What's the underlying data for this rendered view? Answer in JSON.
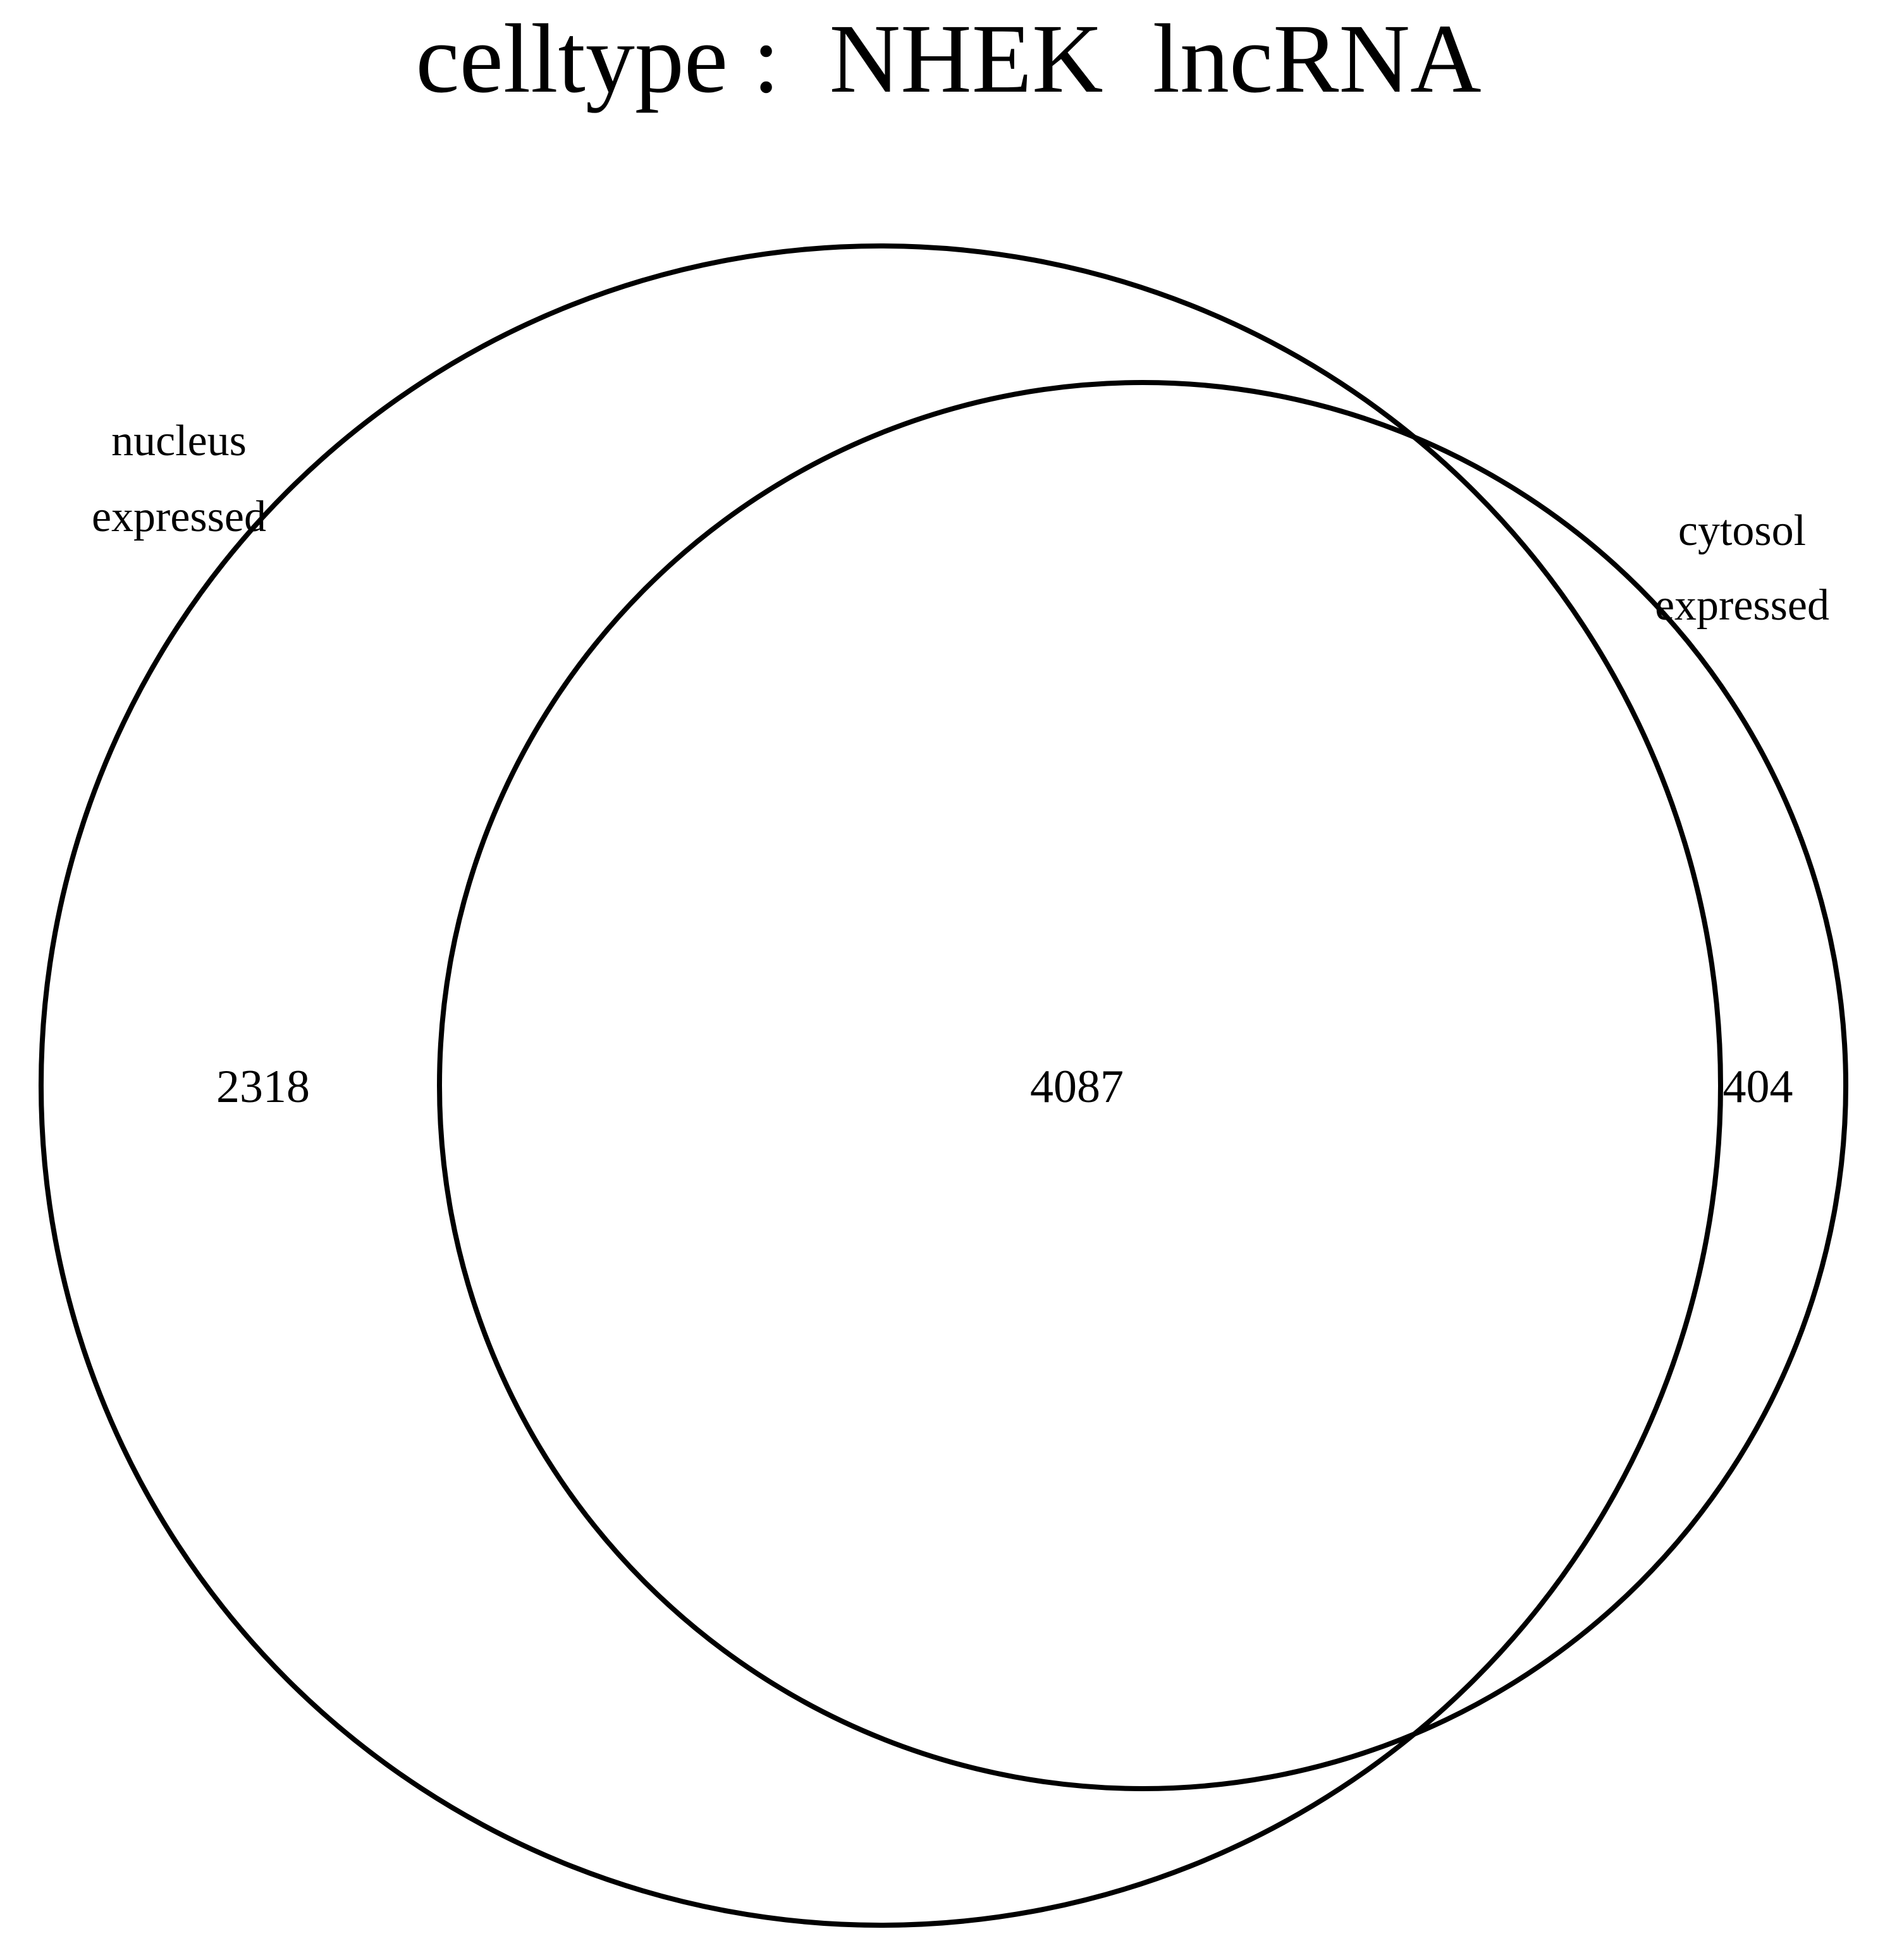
{
  "title": "celltype :  NHEK  lncRNA",
  "sets": [
    {
      "name": "nucleus expressed",
      "label_lines": [
        "nucleus",
        "expressed"
      ]
    },
    {
      "name": "cytosol expressed",
      "label_lines": [
        "cytosol",
        "expressed"
      ]
    }
  ],
  "regions": {
    "nucleus_only": "2318",
    "both": "4087",
    "cytosol_only": "404"
  },
  "colors": {
    "stroke": "#000000",
    "background": "#ffffff"
  }
}
